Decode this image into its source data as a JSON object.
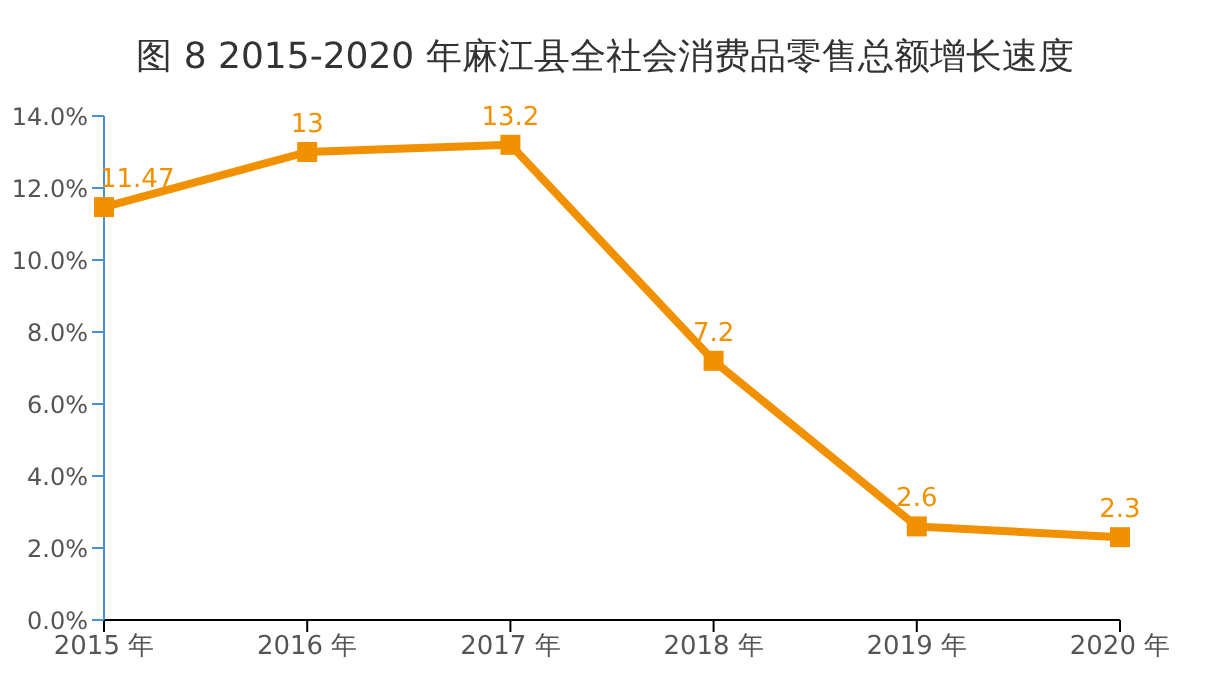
{
  "chart_data": {
    "type": "line",
    "title": "图 8  2015-2020 年麻江县全社会消费品零售总额增长速度",
    "categories": [
      "2015 年",
      "2016 年",
      "2017 年",
      "2018 年",
      "2019 年",
      "2020 年"
    ],
    "series": [
      {
        "color": "#f29100",
        "values": [
          11.47,
          13,
          13.2,
          7.2,
          2.6,
          2.3
        ]
      }
    ],
    "ylim": [
      0,
      14
    ],
    "yticks": [
      {
        "value": 0,
        "label": "0.0%"
      },
      {
        "value": 2,
        "label": "2.0%"
      },
      {
        "value": 4,
        "label": "4.0%"
      },
      {
        "value": 6,
        "label": "6.0%"
      },
      {
        "value": 8,
        "label": "8.0%"
      },
      {
        "value": 10,
        "label": "10.0%"
      },
      {
        "value": 12,
        "label": "12.0%"
      },
      {
        "value": 14,
        "label": "14.0%"
      }
    ],
    "data_labels": true,
    "marker": "square",
    "grid": false,
    "legend": false
  }
}
